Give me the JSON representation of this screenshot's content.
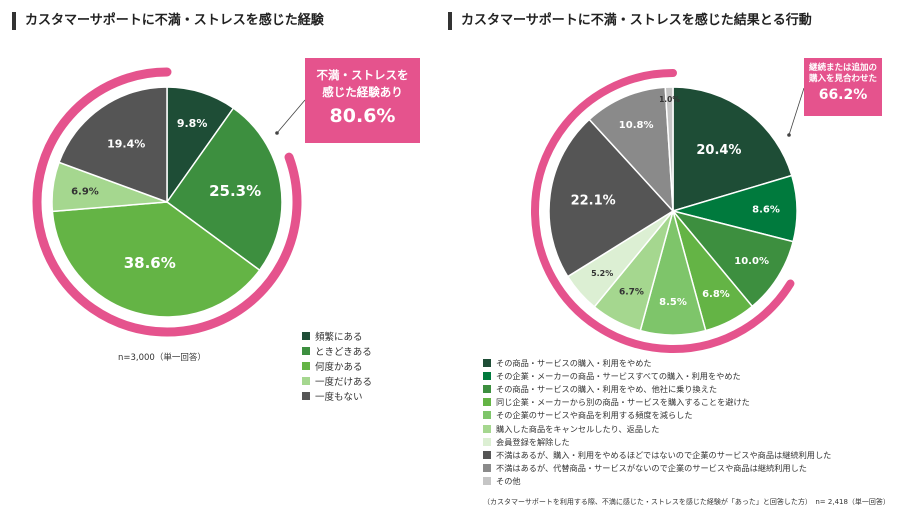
{
  "colors": {
    "accent": "#e5538d",
    "slice_colors": [
      "#1e4d36",
      "#007a3d",
      "#3d8f3f",
      "#64b445",
      "#7ec56a",
      "#a5d78f",
      "#dcefd3",
      "#555555",
      "#8a8a8a",
      "#c5c5c5"
    ]
  },
  "left": {
    "title": "カスタマーサポートに不満・ストレスを感じた経験",
    "callout": {
      "line1": "不満・ストレスを",
      "line2": "感じた経験あり",
      "value": "80.6%"
    },
    "note": "n=3,000（単一回答）"
  },
  "right": {
    "title": "カスタマーサポートに不満・ストレスを感じた結果とる行動",
    "callout": {
      "line1": "継続または追加の",
      "line2": "購入を見合わせた",
      "value": "66.2%"
    },
    "note": "（カスタマーサポートを利用する際、不満に感じた・ストレスを感じた経験が「あった」と回答した方）　n= 2,418（単一回答）"
  },
  "chart_data": [
    {
      "type": "pie",
      "title": "カスタマーサポートに不満・ストレスを感じた経験",
      "categories": [
        "頻繁にある",
        "ときどきある",
        "何度かある",
        "一度だけある",
        "一度もない"
      ],
      "values": [
        9.8,
        25.3,
        38.6,
        6.9,
        19.4
      ],
      "labels": [
        "9.8%",
        "25.3%",
        "38.6%",
        "6.9%",
        "19.4%"
      ],
      "colors": [
        "#1e4d36",
        "#3d8f3f",
        "#64b445",
        "#a5d78f",
        "#555555"
      ],
      "highlight": {
        "label": "不満・ストレスを感じた経験あり",
        "value": 80.6
      },
      "legend_position": "bottom-right"
    },
    {
      "type": "pie",
      "title": "カスタマーサポートに不満・ストレスを感じた結果とる行動",
      "categories": [
        "その商品・サービスの購入・利用をやめた",
        "その企業・メーカーの商品・サービスすべての購入・利用をやめた",
        "その商品・サービスの購入・利用をやめ、他社に乗り換えた",
        "同じ企業・メーカーから別の商品・サービスを購入することを避けた",
        "その企業のサービスや商品を利用する頻度を減らした",
        "購入した商品をキャンセルしたり、返品した",
        "会員登録を解除した",
        "不満はあるが、購入・利用をやめるほどではないので企業のサービスや商品は継続利用した",
        "不満はあるが、代替商品・サービスがないので企業のサービスや商品は継続利用した",
        "その他"
      ],
      "values": [
        20.4,
        8.6,
        10.0,
        6.8,
        8.5,
        6.7,
        5.2,
        22.1,
        10.8,
        1.0
      ],
      "labels": [
        "20.4%",
        "8.6%",
        "10.0%",
        "6.8%",
        "8.5%",
        "6.7%",
        "5.2%",
        "22.1%",
        "10.8%",
        "1.0%"
      ],
      "colors": [
        "#1e4d36",
        "#007a3d",
        "#3d8f3f",
        "#64b445",
        "#7ec56a",
        "#a5d78f",
        "#dcefd3",
        "#555555",
        "#8a8a8a",
        "#c5c5c5"
      ],
      "highlight": {
        "label": "継続または追加の購入を見合わせた",
        "value": 66.2
      },
      "legend_position": "bottom"
    }
  ]
}
